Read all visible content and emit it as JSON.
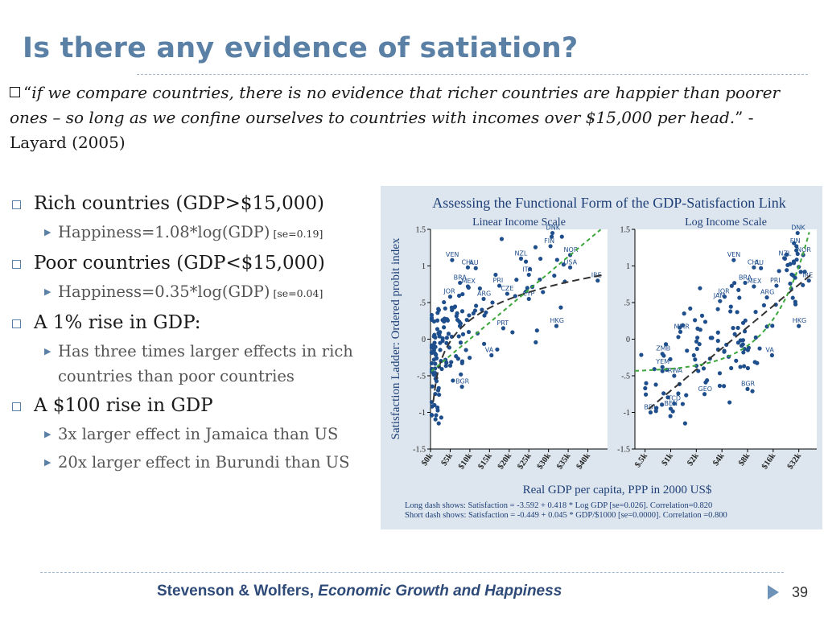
{
  "slide": {
    "title": "Is there any evidence of satiation?",
    "quote": {
      "open": "“",
      "text": "if we compare countries, there is no evidence that richer countries are happier than poorer ones – so long as we confine ourselves to countries with incomes over $15,000 per head.",
      "close": "”",
      "attribution": "  - Layard (2005)"
    },
    "bullets": [
      {
        "text": "Rich countries (GDP>$15,000)",
        "sub": [
          {
            "text": "Happiness=1.08*log(GDP)",
            "se": "[se=0.19]"
          }
        ]
      },
      {
        "text": "Poor countries (GDP<$15,000)",
        "sub": [
          {
            "text": "Happiness=0.35*log(GDP)",
            "se": "[se=0.04]"
          }
        ]
      },
      {
        "text": "A 1% rise in GDP:",
        "sub": [
          {
            "text": "Has three times larger effects in rich countries than poor countries",
            "se": ""
          }
        ]
      },
      {
        "text": "A $100 rise in GDP",
        "sub": [
          {
            "text": "3x larger effect in Jamaica than US",
            "se": ""
          },
          {
            "text": "20x larger effect in Burundi than US",
            "se": ""
          }
        ]
      }
    ],
    "footer": {
      "authors": "Stevenson & Wolfers, ",
      "work": "Economic Growth and Happiness"
    },
    "page_number": "39"
  },
  "chart_data": {
    "type": "scatter",
    "title": "Assessing the Functional Form of the GDP-Satisfaction Link",
    "ylabel": "Satisfaction Ladder: Ordered probit index",
    "xlabel": "Real GDP per capita, PPP in 2000 US$",
    "notes": [
      "Long dash shows: Satisfaction = -3.592 + 0.418 * Log GDP [se=0.026].  Correlation=0.820",
      "Short dash shows: Satisfaction = -0.449 + 0.045 * GDP/$1000 [se=0.0000].  Correlation =0.800"
    ],
    "colors": {
      "points": "#1f4e8c",
      "long_dash": "#333333",
      "short_dash": "#3aa63a",
      "panel": "#ffffff",
      "background": "#dde6ee"
    },
    "ylim": [
      -1.5,
      1.5
    ],
    "yticks": [
      "1.5",
      "1",
      ".5",
      "0",
      "-.5",
      "-1",
      "-1.5"
    ],
    "yticks_values": [
      1.5,
      1,
      0.5,
      0,
      -0.5,
      -1,
      -1.5
    ],
    "panels": [
      {
        "subtitle": "Linear Income Scale",
        "scale": "linear",
        "xlim": [
          0,
          45
        ],
        "xticks": [
          "$0k",
          "$5k",
          "$10k",
          "$15k",
          "$20k",
          "$25k",
          "$30k",
          "$35k",
          "$40k"
        ],
        "xticks_values": [
          0,
          5,
          10,
          15,
          20,
          25,
          30,
          35,
          40
        ],
        "long_fit": "log",
        "short_fit": "linear",
        "labels": [
          {
            "t": "DNK",
            "x": 31,
            "y": 1.45
          },
          {
            "t": "FIN",
            "x": 30.5,
            "y": 1.27
          },
          {
            "t": "NZL",
            "x": 23,
            "y": 1.1
          },
          {
            "t": "NOR",
            "x": 35.5,
            "y": 1.15
          },
          {
            "t": "VEN",
            "x": 5.5,
            "y": 1.08
          },
          {
            "t": "CHL",
            "x": 9.5,
            "y": 0.98
          },
          {
            "t": "AU",
            "x": 11.5,
            "y": 0.97
          },
          {
            "t": "USA",
            "x": 35.5,
            "y": 0.98
          },
          {
            "t": "BRA",
            "x": 7.5,
            "y": 0.77
          },
          {
            "t": "MEX",
            "x": 9.5,
            "y": 0.72
          },
          {
            "t": "PRI",
            "x": 17.5,
            "y": 0.73
          },
          {
            "t": "CZE",
            "x": 19.5,
            "y": 0.62
          },
          {
            "t": "IRE",
            "x": 42.5,
            "y": 0.8
          },
          {
            "t": "ITA",
            "x": 25,
            "y": 0.88
          },
          {
            "t": "ARG",
            "x": 13.5,
            "y": 0.55
          },
          {
            "t": "CYP",
            "x": 25,
            "y": 0.55
          },
          {
            "t": "JOR",
            "x": 5,
            "y": 0.58
          },
          {
            "t": "PRT",
            "x": 18.5,
            "y": 0.15
          },
          {
            "t": "HKG",
            "x": 32,
            "y": 0.18
          },
          {
            "t": "BGR",
            "x": 8,
            "y": -0.65
          },
          {
            "t": "VA",
            "x": 15.5,
            "y": -0.22
          }
        ],
        "clusters": [
          {
            "cx": 1.8,
            "cy": -0.35,
            "sx": 1.3,
            "sy": 0.38,
            "n": 58
          },
          {
            "cx": 5,
            "cy": 0.1,
            "sx": 2.2,
            "sy": 0.3,
            "n": 42
          },
          {
            "cx": 11,
            "cy": 0.2,
            "sx": 4,
            "sy": 0.3,
            "n": 24
          },
          {
            "cx": 28,
            "cy": 0.85,
            "sx": 4.5,
            "sy": 0.3,
            "n": 22
          }
        ]
      },
      {
        "subtitle": "Log Income Scale",
        "scale": "log",
        "xlim": [
          0.38,
          52
        ],
        "xticks": [
          "$.5k",
          "$1k",
          "$2k",
          "$4k",
          "$8k",
          "$16k",
          "$32k"
        ],
        "xticks_values": [
          0.5,
          1,
          2,
          4,
          8,
          16,
          32
        ],
        "long_fit": "log",
        "short_fit": "linear",
        "labels": [
          {
            "t": "DNK",
            "x": 31,
            "y": 1.45
          },
          {
            "t": "FIN",
            "x": 30,
            "y": 1.27
          },
          {
            "t": "NZL",
            "x": 22,
            "y": 1.1
          },
          {
            "t": "NOR",
            "x": 36,
            "y": 1.15
          },
          {
            "t": "VEN",
            "x": 5.5,
            "y": 1.08
          },
          {
            "t": "CHL",
            "x": 9.5,
            "y": 0.98
          },
          {
            "t": "AU",
            "x": 11.5,
            "y": 0.97
          },
          {
            "t": "IRE",
            "x": 42,
            "y": 0.8
          },
          {
            "t": "BRA",
            "x": 7.5,
            "y": 0.77
          },
          {
            "t": "MEX",
            "x": 9.5,
            "y": 0.72
          },
          {
            "t": "PRI",
            "x": 17.5,
            "y": 0.73
          },
          {
            "t": "ARG",
            "x": 13.5,
            "y": 0.57
          },
          {
            "t": "JAM",
            "x": 3.8,
            "y": 0.52
          },
          {
            "t": "JOR",
            "x": 4.3,
            "y": 0.58
          },
          {
            "t": "HKG",
            "x": 32,
            "y": 0.18
          },
          {
            "t": "MMR",
            "x": 1.3,
            "y": 0.1
          },
          {
            "t": "ZMB",
            "x": 0.8,
            "y": -0.2
          },
          {
            "t": "YEM",
            "x": 0.8,
            "y": -0.38
          },
          {
            "t": "RWA",
            "x": 1.1,
            "y": -0.5
          },
          {
            "t": "GEO",
            "x": 2.5,
            "y": -0.75
          },
          {
            "t": "BGR",
            "x": 8,
            "y": -0.68
          },
          {
            "t": "BEN",
            "x": 1.0,
            "y": -0.95
          },
          {
            "t": "TCD",
            "x": 1.1,
            "y": -0.88
          },
          {
            "t": "BDI",
            "x": 0.58,
            "y": -1.0
          },
          {
            "t": "VA",
            "x": 15.5,
            "y": -0.22
          }
        ],
        "clusters": [
          {
            "cx": 1.2,
            "cy": -0.6,
            "sx": 0.5,
            "sy": 0.3,
            "n": 26
          },
          {
            "cx": 3.2,
            "cy": -0.1,
            "sx": 0.5,
            "sy": 0.35,
            "n": 40
          },
          {
            "cx": 7.5,
            "cy": 0.15,
            "sx": 0.4,
            "sy": 0.3,
            "n": 32
          },
          {
            "cx": 27,
            "cy": 0.85,
            "sx": 0.2,
            "sy": 0.3,
            "n": 24
          }
        ]
      }
    ]
  }
}
